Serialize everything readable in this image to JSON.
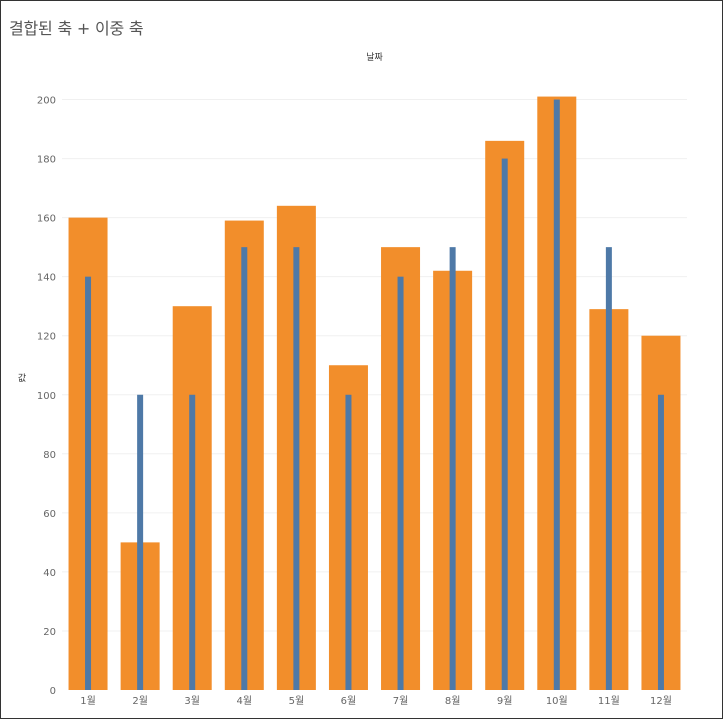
{
  "chart_title": "결합된 축 + 이중 축",
  "chart_data": {
    "type": "bar",
    "title": "결합된 축 + 이중 축",
    "xlabel": "날짜",
    "ylabel": "값",
    "ylim": [
      0,
      210
    ],
    "yticks": [
      0,
      20,
      40,
      60,
      80,
      100,
      120,
      140,
      160,
      180,
      200
    ],
    "grid": true,
    "categories": [
      "1월",
      "2월",
      "3월",
      "4월",
      "5월",
      "6월",
      "7월",
      "8월",
      "9월",
      "10월",
      "11월",
      "12월"
    ],
    "series": [
      {
        "color": "#f28e2b",
        "style": "wide-bar",
        "values": [
          160,
          50,
          130,
          159,
          164,
          110,
          150,
          142,
          186,
          201,
          129,
          120
        ]
      },
      {
        "color": "#4e79a7",
        "style": "narrow-bar",
        "values": [
          140,
          100,
          100,
          150,
          150,
          100,
          140,
          150,
          180,
          200,
          150,
          100
        ]
      }
    ]
  }
}
